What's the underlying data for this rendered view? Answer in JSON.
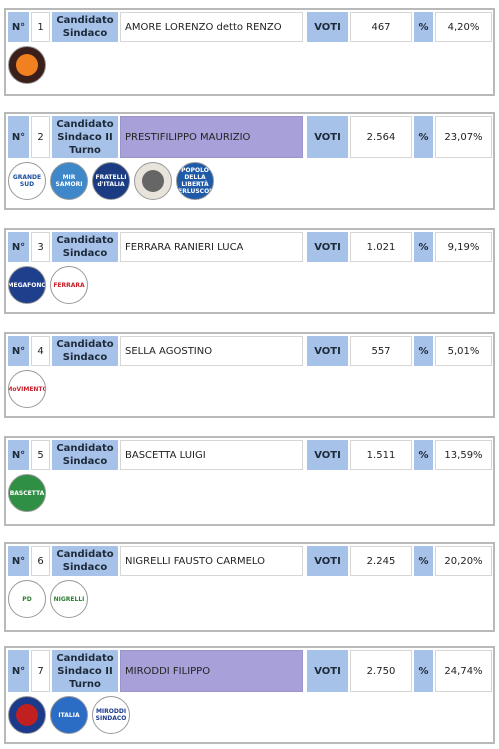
{
  "labels": {
    "n": "N°",
    "voti": "VOTI",
    "pct": "%"
  },
  "candidates": [
    {
      "num": "1",
      "role": "Candidato Sindaco",
      "name": "AMORE LORENZO detto RENZO",
      "votes": "467",
      "percent": "4,20%",
      "turno": false,
      "logos": [
        {
          "icon": "amore-list-logo",
          "text": "",
          "bg": "#3a1f1a",
          "fg": "#f08020"
        }
      ]
    },
    {
      "num": "2",
      "role": "Candidato Sindaco II Turno",
      "name": "PRESTIFILIPPO MAURIZIO",
      "votes": "2.564",
      "percent": "23,07%",
      "turno": true,
      "logos": [
        {
          "icon": "grande-sud-logo",
          "text": "GRANDE SUD",
          "bg": "#ffffff",
          "fg": "#1a4fa0"
        },
        {
          "icon": "mir-samori-logo",
          "text": "MIR SAMORI",
          "bg": "#3e87c9",
          "fg": "#ffffff"
        },
        {
          "icon": "fratelli-italia-logo",
          "text": "FRATELLI d'ITALIA",
          "bg": "#1b3c83",
          "fg": "#ffffff"
        },
        {
          "icon": "civic-list-logo",
          "text": "",
          "bg": "#e8e4dc",
          "fg": "#666666"
        },
        {
          "icon": "popolo-liberta-logo",
          "text": "POPOLO DELLA LIBERTÀ BERLUSCONI",
          "bg": "#1f5aa8",
          "fg": "#ffffff"
        }
      ]
    },
    {
      "num": "3",
      "role": "Candidato Sindaco",
      "name": "FERRARA RANIERI LUCA",
      "votes": "1.021",
      "percent": "9,19%",
      "turno": false,
      "logos": [
        {
          "icon": "megafono-logo",
          "text": "MEGAFONO",
          "bg": "#1e3f8c",
          "fg": "#ffffff"
        },
        {
          "icon": "ferrara-sindaco-logo",
          "text": "FERRARA",
          "bg": "#ffffff",
          "fg": "#c8202a"
        }
      ]
    },
    {
      "num": "4",
      "role": "Candidato Sindaco",
      "name": "SELLA AGOSTINO",
      "votes": "557",
      "percent": "5,01%",
      "turno": false,
      "logos": [
        {
          "icon": "movimento-5-stelle-logo",
          "text": "MoVIMENTO",
          "bg": "#ffffff",
          "fg": "#c8202a"
        }
      ]
    },
    {
      "num": "5",
      "role": "Candidato Sindaco",
      "name": "BASCETTA LUIGI",
      "votes": "1.511",
      "percent": "13,59%",
      "turno": false,
      "logos": [
        {
          "icon": "bascetta-sindaco-logo",
          "text": "BASCETTA",
          "bg": "#2f8f45",
          "fg": "#ffffff"
        }
      ]
    },
    {
      "num": "6",
      "role": "Candidato Sindaco",
      "name": "NIGRELLI FAUSTO CARMELO",
      "votes": "2.245",
      "percent": "20,20%",
      "turno": false,
      "logos": [
        {
          "icon": "partito-democratico-logo",
          "text": "PD",
          "bg": "#ffffff",
          "fg": "#2e7d32"
        },
        {
          "icon": "nigrelli-sindaco-logo",
          "text": "NIGRELLI",
          "bg": "#ffffff",
          "fg": "#2e7d32"
        }
      ]
    },
    {
      "num": "7",
      "role": "Candidato Sindaco II Turno",
      "name": "MIRODDI FILIPPO",
      "votes": "2.750",
      "percent": "24,74%",
      "turno": true,
      "logos": [
        {
          "icon": "civic-blue-logo",
          "text": "",
          "bg": "#1c3a8c",
          "fg": "#c02020"
        },
        {
          "icon": "italia-logo",
          "text": "ITALIA",
          "bg": "#2b6cc4",
          "fg": "#ffffff"
        },
        {
          "icon": "miroddi-sindaco-logo",
          "text": "MIRODDI SINDACO",
          "bg": "#ffffff",
          "fg": "#1c3a8c"
        }
      ]
    }
  ],
  "colors": {
    "header_blue": "#a7c2e8",
    "turno_purple": "#a8a0d8",
    "border": "#b9b9b9"
  }
}
